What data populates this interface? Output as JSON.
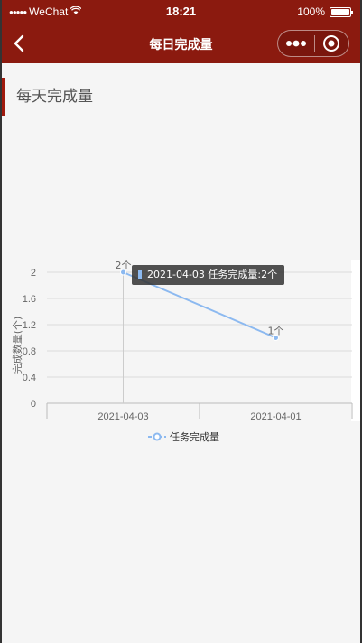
{
  "status_bar": {
    "signal": "●●●●●",
    "carrier": "WeChat",
    "time": "18:21",
    "battery": "100%"
  },
  "nav": {
    "title": "每日完成量"
  },
  "section": {
    "title": "每天完成量"
  },
  "chart_data": {
    "type": "line",
    "categories": [
      "2021-04-03",
      "2021-04-01"
    ],
    "series": [
      {
        "name": "任务完成量",
        "values": [
          2,
          1
        ],
        "labels": [
          "2个",
          "1个"
        ],
        "color": "#8cb9f0"
      }
    ],
    "ylabel": "完成数量(个)",
    "ylim": [
      0,
      2
    ],
    "yticks": [
      "0",
      "0.4",
      "0.8",
      "1.2",
      "1.6",
      "2"
    ],
    "grid": true,
    "legend": "bottom-center",
    "tooltip": {
      "text": "2021-04-03 任务完成量:2个"
    }
  }
}
